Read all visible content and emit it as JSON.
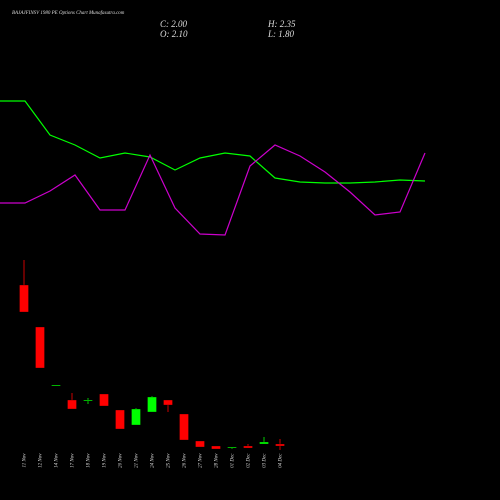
{
  "chart_data": [
    {
      "type": "line",
      "series": [
        {
          "color": "#00ff00",
          "values": [
            199,
            199,
            165,
            155,
            142,
            147,
            143,
            130,
            142,
            147,
            144,
            122,
            118,
            117,
            117,
            118,
            120,
            119
          ]
        },
        {
          "color": "#cc00cc",
          "values": [
            97,
            97,
            109,
            125,
            90,
            90,
            145,
            92,
            66,
            65,
            134,
            155,
            144,
            128,
            108,
            85,
            88,
            147
          ]
        }
      ],
      "ylim": [
        0,
        250
      ]
    },
    {
      "type": "candlestick",
      "title": "BAJAJFINSV 1980 PE Options Chart Munafasutra.com",
      "annotations": [
        "C: 2.00",
        "H: 2.35",
        "O: 2.10",
        "L: 1.80"
      ],
      "categories": [
        "11 Nov",
        "12 Nov",
        "14 Nov",
        "17 Nov",
        "18 Nov",
        "19 Nov",
        "20 Nov",
        "21 Nov",
        "24 Nov",
        "25 Nov",
        "26 Nov",
        "27 Nov",
        "28 Nov",
        "01 Dec",
        "02 Dec",
        "03 Dec",
        "04 Dec"
      ],
      "open": [
        10.05,
        7.95,
        5.0,
        4.3,
        4.25,
        4.6,
        3.8,
        3.05,
        3.7,
        4.3,
        3.6,
        2.25,
        2.0,
        1.9,
        2.0,
        2.1,
        2.1
      ],
      "high": [
        11.3,
        7.95,
        5.05,
        4.65,
        4.4,
        4.6,
        3.8,
        3.9,
        4.5,
        4.3,
        3.6,
        2.25,
        2.0,
        1.95,
        2.1,
        2.45,
        2.35
      ],
      "low": [
        8.7,
        5.9,
        5.0,
        3.85,
        4.1,
        4.0,
        2.85,
        3.05,
        3.7,
        3.7,
        2.3,
        1.95,
        1.85,
        1.85,
        1.9,
        2.1,
        1.8
      ],
      "close": [
        8.7,
        5.9,
        5.05,
        3.85,
        4.3,
        4.0,
        2.85,
        3.85,
        4.45,
        4.05,
        2.3,
        1.95,
        1.85,
        1.95,
        1.9,
        2.2,
        2.0
      ],
      "up_color": "#00ff00",
      "down_color": "#ff0000",
      "ylim": [
        0,
        12
      ]
    }
  ]
}
